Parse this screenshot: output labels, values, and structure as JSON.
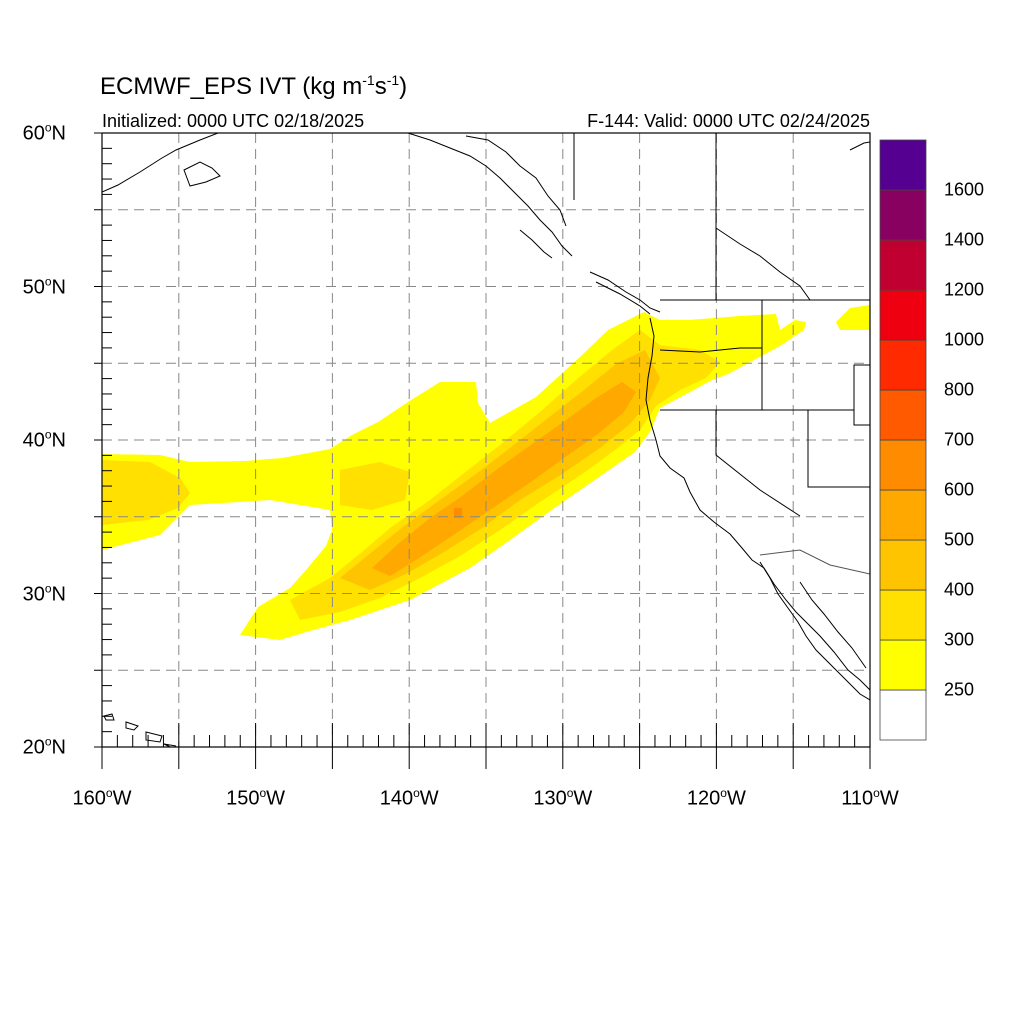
{
  "title": {
    "main": "ECMWF_EPS IVT (kg m",
    "exp1": "-1",
    "mid": "s",
    "exp2": "-1",
    "close": ")"
  },
  "subtitle_left": "Initialized: 0000 UTC 02/18/2025",
  "subtitle_right": "F-144: Valid: 0000 UTC 02/24/2025",
  "map": {
    "lat_range": [
      20,
      60
    ],
    "lon_range": [
      -160,
      -110
    ],
    "grid": true,
    "lat_labels": [
      {
        "lat": 60,
        "num": "60",
        "deg": "o",
        "hem": "N"
      },
      {
        "lat": 50,
        "num": "50",
        "deg": "o",
        "hem": "N"
      },
      {
        "lat": 40,
        "num": "40",
        "deg": "o",
        "hem": "N"
      },
      {
        "lat": 30,
        "num": "30",
        "deg": "o",
        "hem": "N"
      },
      {
        "lat": 20,
        "num": "20",
        "deg": "o",
        "hem": "N"
      }
    ],
    "lon_labels": [
      {
        "lon": -160,
        "num": "160",
        "deg": "o",
        "hem": "W"
      },
      {
        "lon": -150,
        "num": "150",
        "deg": "o",
        "hem": "W"
      },
      {
        "lon": -140,
        "num": "140",
        "deg": "o",
        "hem": "W"
      },
      {
        "lon": -130,
        "num": "130",
        "deg": "o",
        "hem": "W"
      },
      {
        "lon": -120,
        "num": "120",
        "deg": "o",
        "hem": "W"
      },
      {
        "lon": -110,
        "num": "110",
        "deg": "o",
        "hem": "W"
      }
    ]
  },
  "colorbar": {
    "levels": [
      "250",
      "300",
      "400",
      "500",
      "600",
      "700",
      "800",
      "1000",
      "1200",
      "1400",
      "1600"
    ],
    "colors": [
      "#ffffff",
      "#ffff00",
      "#ffe000",
      "#ffc400",
      "#ffa800",
      "#ff8c00",
      "#ff5a00",
      "#ff2a00",
      "#ee0010",
      "#c00030",
      "#880060",
      "#550090"
    ]
  }
}
